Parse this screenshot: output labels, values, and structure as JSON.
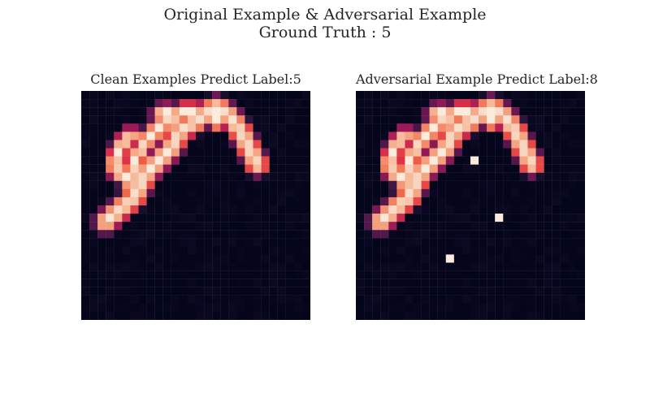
{
  "figure": {
    "title_line1": "Original Example & Adversarial Example",
    "title_line2": "Ground Truth : 5"
  },
  "chart_data": [
    {
      "type": "heatmap",
      "title": "Clean Examples Predict Label:5",
      "rows": 28,
      "cols": 28,
      "colormap": "rocket",
      "vmin": 0,
      "vmax": 1,
      "axes_visible": false,
      "strokes": [
        {
          "points": [
            [
              6,
              32
            ],
            [
              13,
              26
            ],
            [
              16,
              20
            ],
            [
              22,
              14
            ],
            [
              24,
              10
            ],
            [
              27,
              8
            ],
            [
              30,
              6
            ],
            [
              33,
              4
            ],
            [
              36,
              6
            ],
            [
              39,
              10
            ],
            [
              41,
              14
            ],
            [
              43,
              18
            ]
          ],
          "width": 2.0
        },
        {
          "points": [
            [
              33,
              4
            ],
            [
              33,
              8
            ]
          ],
          "width": 1.0
        },
        {
          "points": [
            [
              13,
              26
            ],
            [
              12,
              22
            ],
            [
              13,
              17
            ],
            [
              16,
              12
            ],
            [
              20,
              8
            ],
            [
              25,
              5
            ],
            [
              28,
              5
            ]
          ],
          "width": 1.6
        },
        {
          "points": [
            [
              8,
              18
            ],
            [
              9,
              15
            ],
            [
              10,
              13
            ],
            [
              11,
              12
            ],
            [
              12,
              11
            ]
          ],
          "width": 1.5
        },
        {
          "points": [
            [
              8,
              18
            ],
            [
              9,
              20
            ],
            [
              11,
              21
            ],
            [
              13,
              22
            ]
          ],
          "width": 1.4
        },
        {
          "points": [
            [
              19,
              6
            ],
            [
              20,
              5
            ],
            [
              21,
              5
            ]
          ],
          "width": 1.2
        }
      ]
    },
    {
      "type": "heatmap",
      "title": "Adversarial Example Predict Label:8",
      "rows": 28,
      "cols": 28,
      "colormap": "rocket",
      "vmin": 0,
      "vmax": 1,
      "axes_visible": false,
      "perturbed_pixels": [
        [
          8,
          14
        ],
        [
          15,
          17
        ],
        [
          20,
          11
        ]
      ]
    }
  ]
}
